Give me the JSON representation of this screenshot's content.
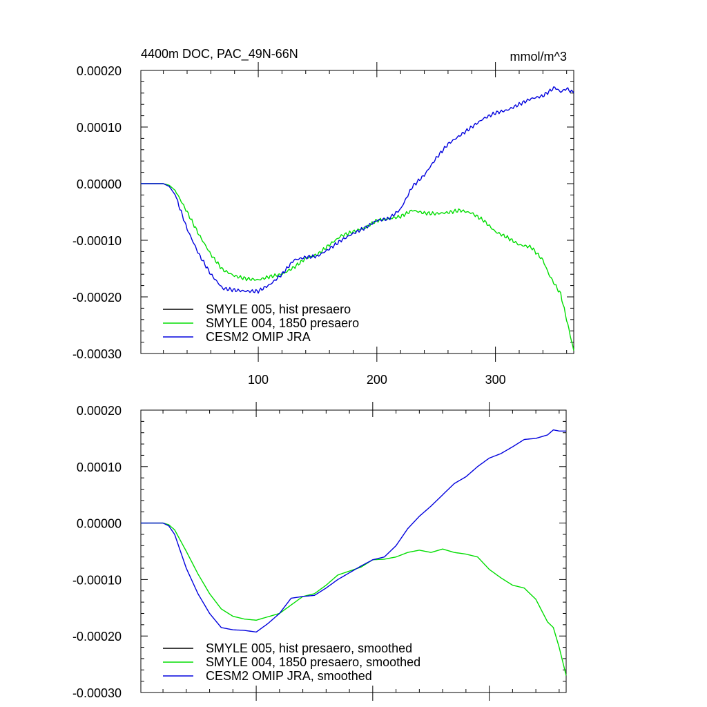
{
  "chart_data": [
    {
      "type": "line",
      "title": "4400m DOC, PAC_49N-66N",
      "units": "mmol/m^3",
      "xlim": [
        1,
        366
      ],
      "ylim": [
        -0.0003,
        0.0002
      ],
      "xticks": [
        100,
        200,
        300
      ],
      "yticks": [
        0.0002,
        0.0001,
        0.0,
        -0.0001,
        -0.0002,
        -0.0003
      ],
      "ytick_labels": [
        "0.00020",
        "0.00010",
        "0.00000",
        "-0.00010",
        "-0.00020",
        "-0.00030"
      ],
      "show_xtick_labels": true,
      "legend_position": "bottom-left",
      "series": [
        {
          "name": "SMYLE 005, hist presaero",
          "color": "#000000",
          "x": [],
          "y": []
        },
        {
          "name": "SMYLE 004, 1850 presaero",
          "color": "#00dd00",
          "x": [
            1,
            10,
            20,
            25,
            30,
            40,
            50,
            60,
            70,
            80,
            90,
            100,
            110,
            120,
            130,
            140,
            150,
            160,
            170,
            180,
            190,
            200,
            210,
            220,
            230,
            240,
            250,
            260,
            270,
            280,
            290,
            300,
            310,
            320,
            330,
            340,
            345,
            350,
            355,
            360,
            366
          ],
          "y": [
            0,
            0,
            0,
            -3e-06,
            -1.2e-05,
            -5e-05,
            -9e-05,
            -0.000125,
            -0.000152,
            -0.000163,
            -0.000168,
            -0.00017,
            -0.000164,
            -0.00016,
            -0.000148,
            -0.000132,
            -0.000125,
            -0.000108,
            -9.2e-05,
            -8.5e-05,
            -7.8e-05,
            -6.5e-05,
            -6.2e-05,
            -5.8e-05,
            -4.7e-05,
            -5.2e-05,
            -5.3e-05,
            -5.1e-05,
            -4.7e-05,
            -5.2e-05,
            -6.5e-05,
            -8.5e-05,
            -9.5e-05,
            -0.000108,
            -0.000112,
            -0.000135,
            -0.00016,
            -0.000178,
            -0.000195,
            -0.00024,
            -0.000295
          ]
        },
        {
          "name": "CESM2 OMIP JRA",
          "color": "#0000dd",
          "x": [
            1,
            10,
            20,
            25,
            30,
            40,
            50,
            60,
            70,
            80,
            90,
            100,
            110,
            120,
            130,
            140,
            150,
            160,
            170,
            180,
            190,
            200,
            210,
            220,
            230,
            240,
            250,
            260,
            270,
            280,
            290,
            300,
            310,
            320,
            330,
            340,
            350,
            355,
            360,
            366
          ],
          "y": [
            0,
            0,
            0,
            -5e-06,
            -2e-05,
            -8e-05,
            -0.000125,
            -0.00016,
            -0.000185,
            -0.000188,
            -0.00019,
            -0.00019,
            -0.000178,
            -0.00016,
            -0.000135,
            -0.00013,
            -0.000128,
            -0.000115,
            -0.0001,
            -8.8e-05,
            -7.8e-05,
            -6.5e-05,
            -6.2e-05,
            -4.5e-05,
            -5e-06,
            1.5e-05,
            4.5e-05,
            7e-05,
            8.5e-05,
            0.0001,
            0.000115,
            0.000125,
            0.00013,
            0.00014,
            0.00015,
            0.000155,
            0.00017,
            0.000162,
            0.000168,
            0.00016
          ]
        }
      ]
    },
    {
      "type": "line",
      "title": "",
      "units": "",
      "xlim": [
        1,
        366
      ],
      "ylim": [
        -0.0003,
        0.0002
      ],
      "xticks": [
        100,
        200,
        300
      ],
      "yticks": [
        0.0002,
        0.0001,
        0.0,
        -0.0001,
        -0.0002,
        -0.0003
      ],
      "ytick_labels": [
        "0.00020",
        "0.00010",
        "0.00000",
        "-0.00010",
        "-0.00020",
        "-0.00030"
      ],
      "show_xtick_labels": false,
      "legend_position": "bottom-left",
      "series": [
        {
          "name": "SMYLE 005, hist presaero, smoothed",
          "color": "#000000",
          "x": [],
          "y": []
        },
        {
          "name": "SMYLE 004, 1850 presaero, smoothed",
          "color": "#00dd00",
          "x": [
            1,
            10,
            20,
            25,
            30,
            40,
            50,
            60,
            70,
            80,
            90,
            100,
            110,
            120,
            130,
            140,
            150,
            160,
            170,
            180,
            190,
            200,
            210,
            220,
            230,
            240,
            250,
            260,
            270,
            280,
            290,
            300,
            310,
            320,
            330,
            340,
            350,
            355,
            360,
            366
          ],
          "y": [
            0,
            0,
            0,
            -3e-06,
            -1.2e-05,
            -5e-05,
            -9e-05,
            -0.000125,
            -0.000152,
            -0.000165,
            -0.00017,
            -0.000172,
            -0.000166,
            -0.00016,
            -0.000145,
            -0.00013,
            -0.000125,
            -0.00011,
            -9.2e-05,
            -8.5e-05,
            -7.8e-05,
            -6.5e-05,
            -6.4e-05,
            -6e-05,
            -5.2e-05,
            -4.8e-05,
            -5.2e-05,
            -4.6e-05,
            -5.2e-05,
            -5.5e-05,
            -6e-05,
            -8.2e-05,
            -9.7e-05,
            -0.00011,
            -0.000115,
            -0.000135,
            -0.000175,
            -0.000185,
            -0.00022,
            -0.00027
          ]
        },
        {
          "name": "CESM2 OMIP JRA, smoothed",
          "color": "#0000dd",
          "x": [
            1,
            10,
            20,
            25,
            30,
            40,
            50,
            60,
            70,
            80,
            90,
            100,
            110,
            120,
            130,
            140,
            150,
            160,
            170,
            180,
            190,
            200,
            210,
            220,
            230,
            240,
            250,
            260,
            270,
            280,
            290,
            300,
            310,
            320,
            330,
            340,
            350,
            355,
            360,
            366
          ],
          "y": [
            0,
            0,
            0,
            -5e-06,
            -2e-05,
            -8e-05,
            -0.000125,
            -0.00016,
            -0.000185,
            -0.000189,
            -0.00019,
            -0.000193,
            -0.000178,
            -0.00016,
            -0.000133,
            -0.00013,
            -0.000128,
            -0.000115,
            -0.0001,
            -8.8e-05,
            -7.6e-05,
            -6.5e-05,
            -6e-05,
            -4e-05,
            -1e-05,
            1.2e-05,
            3e-05,
            5e-05,
            7e-05,
            8.2e-05,
            0.0001,
            0.000115,
            0.000123,
            0.000135,
            0.000148,
            0.00015,
            0.000156,
            0.000165,
            0.000163,
            0.000163
          ]
        }
      ]
    }
  ]
}
